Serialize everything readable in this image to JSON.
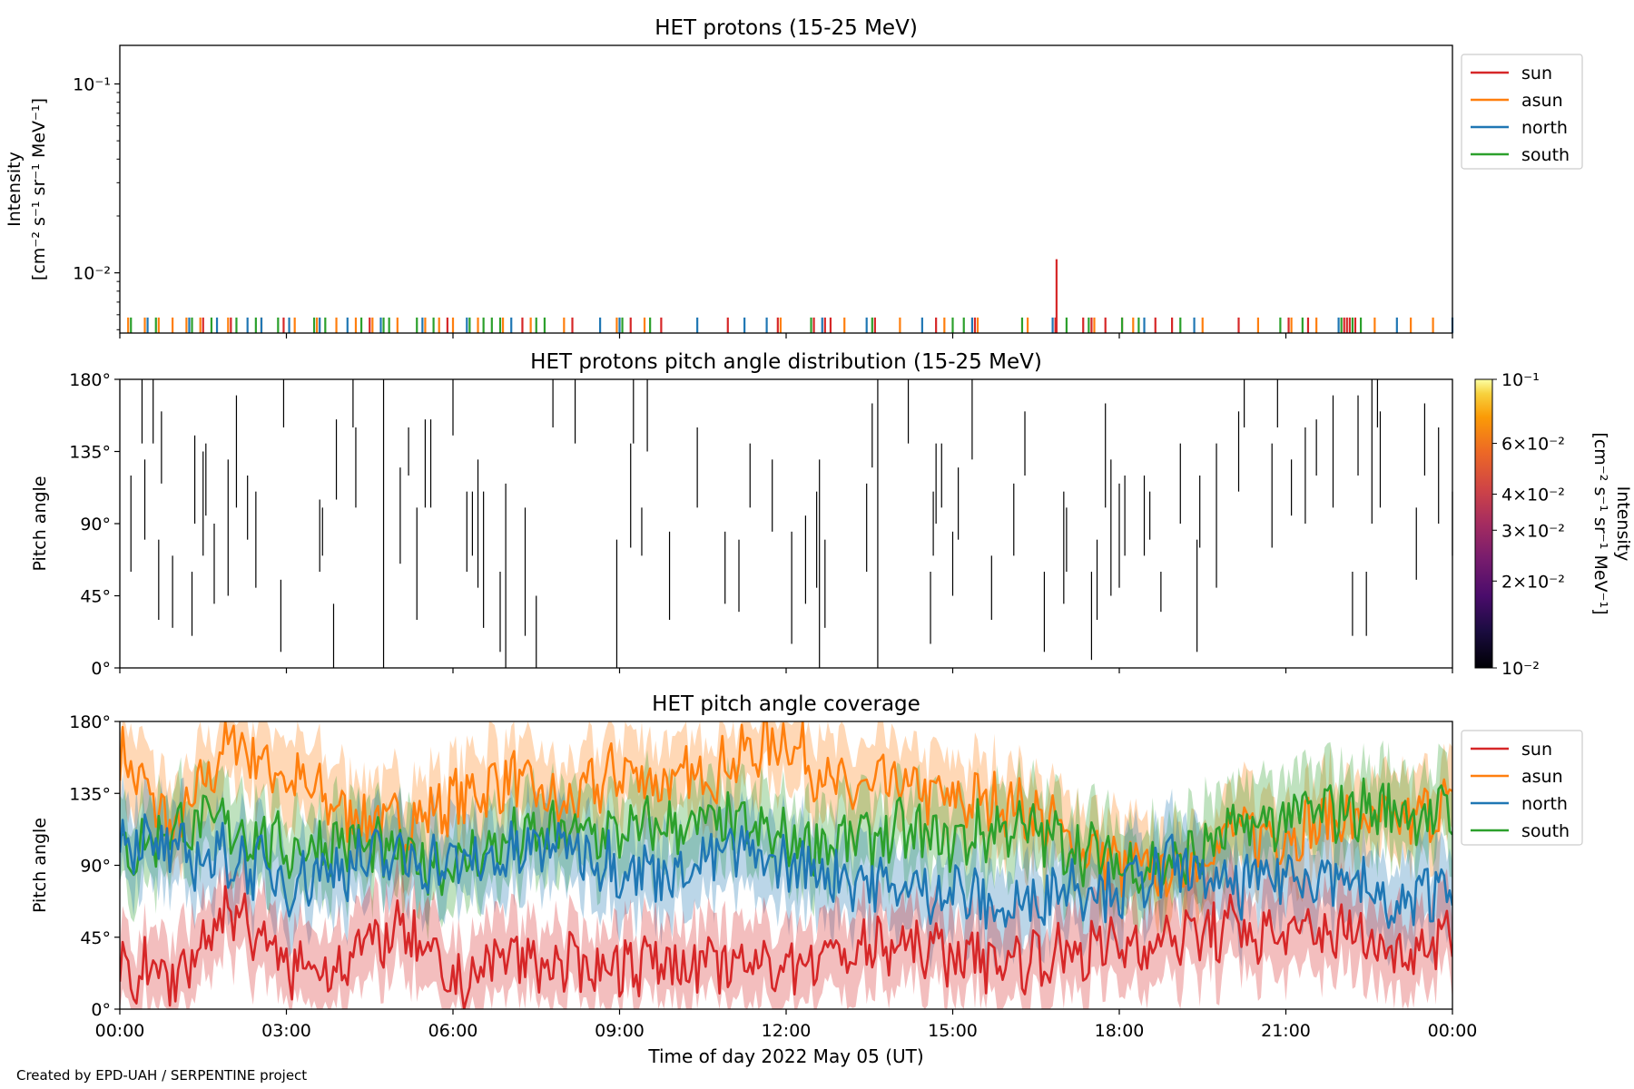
{
  "footer": "Created by EPD-UAH / SERPENTINE project",
  "colors": {
    "sun": "#d62728",
    "asun": "#ff7f0e",
    "north": "#1f77b4",
    "south": "#2ca02c"
  },
  "chart_data": [
    {
      "id": "intensity",
      "type": "line",
      "title": "HET protons (15-25 MeV)",
      "ylabel": "Intensity",
      "ylabel_unit": "[cm⁻² s⁻¹ sr⁻¹ MeV⁻¹]",
      "yscale": "log",
      "ylim": [
        0.0048,
        0.16
      ],
      "yticks": [
        "10⁻²",
        "10⁻¹"
      ],
      "xlim": [
        0,
        24
      ],
      "legend_position": "upper-right-outside",
      "spike_base": 0.0048,
      "spike_height": 0.0058,
      "series": [
        {
          "name": "sun",
          "spikes": [
            1.5,
            2.0,
            2.95,
            4.5,
            5.9,
            7.25,
            8.15,
            9.2,
            9.75,
            10.95,
            11.85,
            12.5,
            12.7,
            12.8,
            13.6,
            14.7,
            15.4,
            16.85,
            17.35,
            17.5,
            17.75,
            18.05,
            18.65,
            18.95,
            20.15,
            21.05,
            21.4,
            22.05,
            22.1,
            22.15,
            22.25
          ],
          "peak": {
            "x": 16.87,
            "y": 0.0118
          }
        },
        {
          "name": "asun",
          "spikes": [
            0.15,
            0.45,
            0.7,
            0.95,
            1.2,
            1.45,
            1.95,
            2.55,
            3.15,
            3.55,
            3.9,
            4.25,
            4.55,
            5.0,
            5.5,
            5.75,
            6.0,
            6.45,
            6.9,
            7.4,
            8.0,
            8.95,
            9.45,
            11.9,
            13.05,
            14.05,
            14.85,
            15.45,
            16.35,
            17.55,
            18.25,
            19.5,
            20.5,
            21.1,
            21.55,
            22.6,
            23.25,
            23.65
          ],
          "peak": null
        },
        {
          "name": "north",
          "spikes": [
            0.5,
            1.25,
            1.75,
            2.3,
            2.55,
            3.05,
            3.6,
            4.1,
            4.7,
            5.45,
            6.25,
            7.05,
            8.65,
            9.0,
            10.4,
            11.25,
            11.65,
            12.65,
            13.45,
            14.45,
            15.35,
            16.8,
            18.45,
            19.35,
            21.95,
            23.0,
            24.0
          ],
          "peak": null
        },
        {
          "name": "south",
          "spikes": [
            0.2,
            0.65,
            1.3,
            1.65,
            2.1,
            2.45,
            2.85,
            3.5,
            3.7,
            4.35,
            4.75,
            4.85,
            5.35,
            5.65,
            6.3,
            6.55,
            6.7,
            6.85,
            7.5,
            7.65,
            9.05,
            9.55,
            12.45,
            13.55,
            15.0,
            15.2,
            16.25,
            17.05,
            17.45,
            18.05,
            18.35,
            19.1,
            20.9,
            21.3,
            22.0,
            22.2,
            22.35
          ],
          "peak": null
        }
      ]
    },
    {
      "id": "pad",
      "type": "heatmap",
      "title": "HET protons pitch angle distribution (15-25 MeV)",
      "ylabel": "Pitch angle",
      "ylim": [
        0,
        180
      ],
      "yticks": [
        "0°",
        "45°",
        "90°",
        "135°",
        "180°"
      ],
      "xlim": [
        0,
        24
      ],
      "colorbar": {
        "label": "Intensity",
        "label_unit": "[cm⁻² s⁻¹ sr⁻¹ MeV⁻¹]",
        "scale": "log",
        "range": [
          0.01,
          0.1
        ],
        "ticks": [
          {
            "value": 0.1,
            "label": "10⁻¹"
          },
          {
            "value": 0.06,
            "label": "6×10⁻²"
          },
          {
            "value": 0.04,
            "label": "4×10⁻²"
          },
          {
            "value": 0.03,
            "label": "3×10⁻²"
          },
          {
            "value": 0.02,
            "label": "2×10⁻²"
          },
          {
            "value": 0.01,
            "label": "10⁻²"
          }
        ]
      },
      "events": [
        [
          0.2,
          60,
          120
        ],
        [
          0.4,
          140,
          180
        ],
        [
          0.45,
          80,
          130
        ],
        [
          0.6,
          140,
          180
        ],
        [
          0.7,
          30,
          80
        ],
        [
          0.75,
          115,
          160
        ],
        [
          0.95,
          25,
          70
        ],
        [
          1.3,
          20,
          60
        ],
        [
          1.35,
          90,
          145
        ],
        [
          1.5,
          70,
          135
        ],
        [
          1.55,
          95,
          140
        ],
        [
          1.7,
          40,
          90
        ],
        [
          1.95,
          45,
          130
        ],
        [
          2.1,
          100,
          170
        ],
        [
          2.3,
          80,
          120
        ],
        [
          2.45,
          50,
          110
        ],
        [
          2.9,
          10,
          55
        ],
        [
          2.95,
          150,
          180
        ],
        [
          3.6,
          60,
          105
        ],
        [
          3.65,
          70,
          100
        ],
        [
          3.85,
          0,
          40
        ],
        [
          3.9,
          105,
          155
        ],
        [
          4.2,
          150,
          180
        ],
        [
          4.25,
          100,
          150
        ],
        [
          4.75,
          0,
          180
        ],
        [
          5.05,
          65,
          125
        ],
        [
          5.2,
          120,
          150
        ],
        [
          5.35,
          30,
          100
        ],
        [
          5.5,
          100,
          155
        ],
        [
          5.6,
          100,
          155
        ],
        [
          6.0,
          145,
          180
        ],
        [
          6.25,
          60,
          110
        ],
        [
          6.35,
          70,
          110
        ],
        [
          6.45,
          50,
          130
        ],
        [
          6.55,
          25,
          110
        ],
        [
          6.85,
          10,
          60
        ],
        [
          6.95,
          0,
          115
        ],
        [
          7.3,
          20,
          100
        ],
        [
          7.5,
          0,
          45
        ],
        [
          7.8,
          150,
          180
        ],
        [
          8.2,
          140,
          180
        ],
        [
          8.95,
          0,
          80
        ],
        [
          9.2,
          75,
          140
        ],
        [
          9.25,
          140,
          180
        ],
        [
          9.4,
          70,
          100
        ],
        [
          9.5,
          135,
          180
        ],
        [
          9.9,
          30,
          85
        ],
        [
          10.4,
          100,
          150
        ],
        [
          10.9,
          40,
          85
        ],
        [
          11.15,
          35,
          80
        ],
        [
          11.35,
          100,
          140
        ],
        [
          11.75,
          85,
          130
        ],
        [
          12.1,
          15,
          85
        ],
        [
          12.35,
          40,
          95
        ],
        [
          12.55,
          50,
          110
        ],
        [
          12.6,
          0,
          130
        ],
        [
          12.7,
          25,
          80
        ],
        [
          13.45,
          60,
          115
        ],
        [
          13.55,
          125,
          165
        ],
        [
          13.65,
          0,
          180
        ],
        [
          14.2,
          140,
          180
        ],
        [
          14.6,
          15,
          60
        ],
        [
          14.65,
          70,
          110
        ],
        [
          14.7,
          90,
          140
        ],
        [
          14.8,
          100,
          140
        ],
        [
          15.0,
          45,
          85
        ],
        [
          15.1,
          80,
          125
        ],
        [
          15.35,
          130,
          180
        ],
        [
          15.7,
          30,
          70
        ],
        [
          16.1,
          70,
          115
        ],
        [
          16.3,
          120,
          160
        ],
        [
          16.65,
          10,
          60
        ],
        [
          17.0,
          40,
          110
        ],
        [
          17.05,
          60,
          100
        ],
        [
          17.5,
          5,
          60
        ],
        [
          17.6,
          30,
          80
        ],
        [
          17.75,
          100,
          165
        ],
        [
          17.85,
          45,
          130
        ],
        [
          18.0,
          50,
          115
        ],
        [
          18.1,
          70,
          120
        ],
        [
          18.45,
          70,
          120
        ],
        [
          18.55,
          80,
          110
        ],
        [
          18.75,
          35,
          60
        ],
        [
          19.1,
          90,
          140
        ],
        [
          19.4,
          10,
          80
        ],
        [
          19.45,
          75,
          120
        ],
        [
          19.75,
          50,
          140
        ],
        [
          20.15,
          110,
          160
        ],
        [
          20.25,
          150,
          180
        ],
        [
          20.75,
          75,
          140
        ],
        [
          20.85,
          150,
          180
        ],
        [
          21.1,
          95,
          130
        ],
        [
          21.35,
          90,
          150
        ],
        [
          21.55,
          120,
          155
        ],
        [
          21.85,
          100,
          170
        ],
        [
          22.2,
          20,
          60
        ],
        [
          22.3,
          120,
          170
        ],
        [
          22.45,
          20,
          60
        ],
        [
          22.55,
          90,
          180
        ],
        [
          22.65,
          150,
          180
        ],
        [
          22.7,
          100,
          160
        ],
        [
          23.35,
          55,
          100
        ],
        [
          23.5,
          120,
          165
        ],
        [
          23.75,
          90,
          150
        ],
        [
          24.0,
          70,
          110
        ]
      ]
    },
    {
      "id": "coverage",
      "type": "line",
      "title": "HET pitch angle coverage",
      "ylabel": "Pitch angle",
      "xlabel": "Time of day 2022 May 05 (UT)",
      "ylim": [
        0,
        180
      ],
      "yticks": [
        "0°",
        "45°",
        "90°",
        "135°",
        "180°"
      ],
      "xlim": [
        0,
        24
      ],
      "xticks": [
        "00:00",
        "03:00",
        "06:00",
        "09:00",
        "12:00",
        "15:00",
        "18:00",
        "21:00",
        "00:00"
      ],
      "legend_position": "upper-right-outside",
      "band_halfwidth": 25,
      "series": [
        {
          "name": "sun",
          "x": [
            0,
            1,
            2,
            3,
            4,
            5,
            6,
            7,
            8,
            9,
            10,
            11,
            12,
            13,
            14,
            15,
            16,
            17,
            18,
            19,
            20,
            21,
            22,
            23,
            24
          ],
          "y": [
            25,
            20,
            65,
            25,
            30,
            50,
            15,
            35,
            25,
            30,
            30,
            25,
            30,
            35,
            40,
            35,
            30,
            35,
            40,
            45,
            50,
            45,
            50,
            35,
            50
          ]
        },
        {
          "name": "asun",
          "x": [
            0,
            1,
            2,
            3,
            4,
            5,
            6,
            7,
            8,
            9,
            10,
            11,
            12,
            13,
            14,
            15,
            16,
            17,
            18,
            19,
            20,
            21,
            22,
            23,
            24
          ],
          "y": [
            160,
            110,
            170,
            145,
            125,
            115,
            130,
            145,
            125,
            150,
            140,
            155,
            170,
            135,
            140,
            130,
            130,
            110,
            90,
            85,
            110,
            110,
            120,
            115,
            130
          ]
        },
        {
          "name": "north",
          "x": [
            0,
            1,
            2,
            3,
            4,
            5,
            6,
            7,
            8,
            9,
            10,
            11,
            12,
            13,
            14,
            15,
            16,
            17,
            18,
            19,
            20,
            21,
            22,
            23,
            24
          ],
          "y": [
            110,
            95,
            95,
            80,
            90,
            95,
            90,
            95,
            105,
            90,
            85,
            100,
            90,
            85,
            75,
            75,
            60,
            80,
            75,
            90,
            75,
            85,
            85,
            60,
            85
          ]
        },
        {
          "name": "south",
          "x": [
            0,
            1,
            2,
            3,
            4,
            5,
            6,
            7,
            8,
            9,
            10,
            11,
            12,
            13,
            14,
            15,
            16,
            17,
            18,
            19,
            20,
            21,
            22,
            23,
            24
          ],
          "y": [
            95,
            115,
            115,
            100,
            105,
            95,
            90,
            105,
            110,
            110,
            115,
            115,
            105,
            105,
            110,
            105,
            115,
            105,
            90,
            90,
            110,
            120,
            125,
            125,
            120
          ]
        }
      ]
    }
  ]
}
